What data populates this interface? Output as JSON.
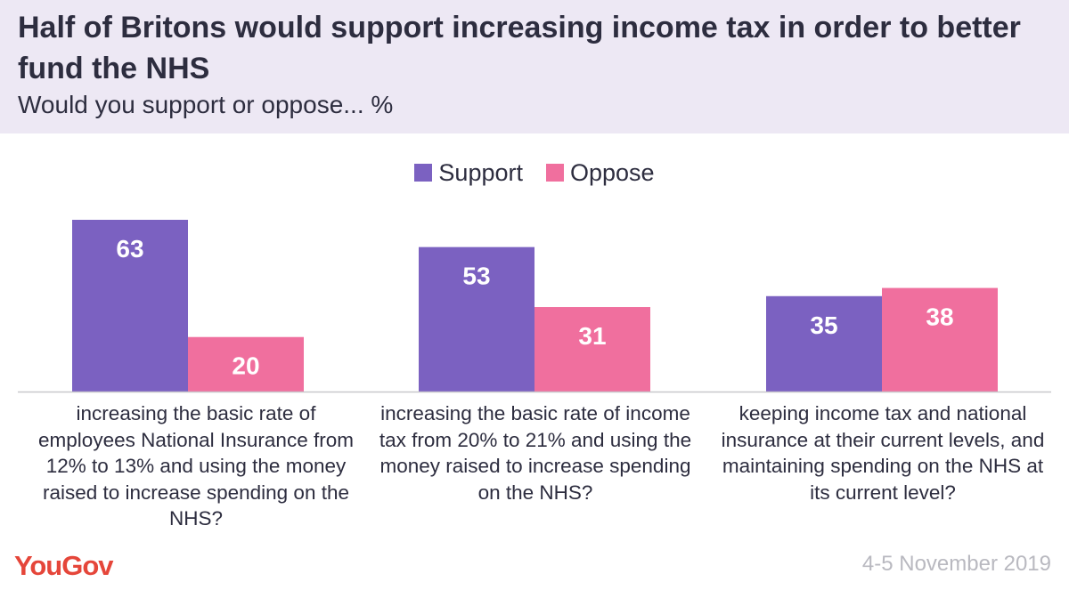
{
  "header": {
    "title": "Half of Britons would support increasing income tax in order to better fund the NHS",
    "subtitle": "Would you support or oppose... %"
  },
  "legend": [
    {
      "label": "Support",
      "color": "#7b61c1"
    },
    {
      "label": "Oppose",
      "color": "#f06f9e"
    }
  ],
  "chart_data": {
    "type": "bar",
    "categories": [
      "increasing the basic rate of employees National Insurance from 12% to 13% and using the money raised to increase spending on the NHS?",
      "increasing the basic rate of income tax from 20% to 21% and using the money raised to increase spending on the NHS?",
      "keeping income tax and national insurance at their current levels, and maintaining spending on the NHS at its current level?"
    ],
    "series": [
      {
        "name": "Support",
        "values": [
          63,
          53,
          35
        ],
        "color": "#7b61c1"
      },
      {
        "name": "Oppose",
        "values": [
          20,
          31,
          38
        ],
        "color": "#f06f9e"
      }
    ],
    "ylim": [
      0,
      63
    ],
    "grid": false,
    "legend_position": "top-center",
    "data_labels": true
  },
  "footer": {
    "brand": "YouGov",
    "date": "4-5 November 2019"
  }
}
